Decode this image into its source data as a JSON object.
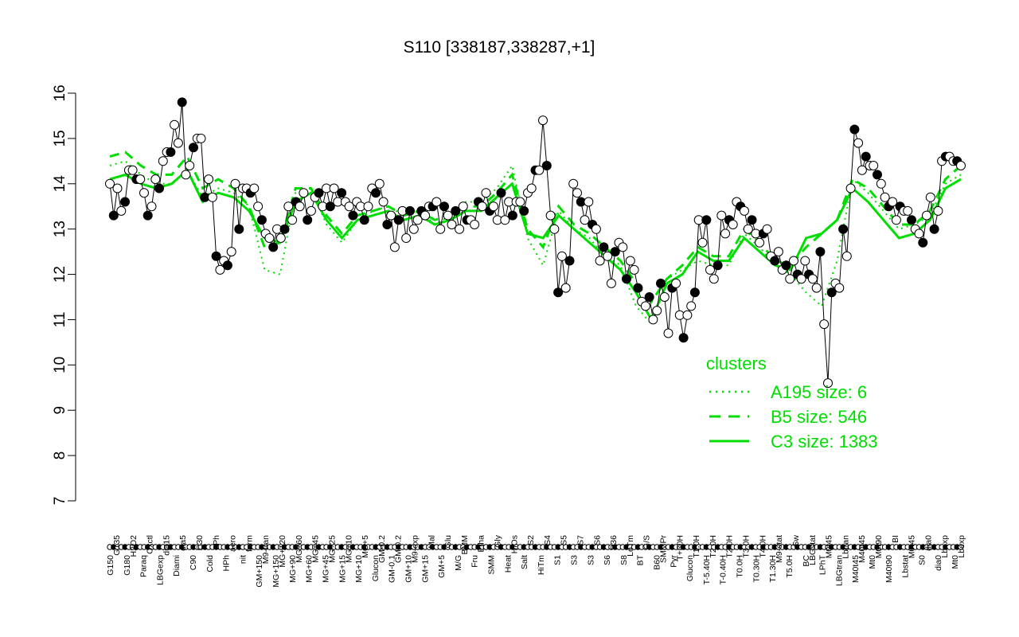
{
  "chart_data": {
    "type": "line",
    "title": "S110 [338187,338287,+1]",
    "xlabel": "",
    "ylabel": "",
    "ylim": [
      7,
      16
    ],
    "yticks": [
      7,
      8,
      9,
      10,
      11,
      12,
      13,
      14,
      15,
      16
    ],
    "x_tick_labels_top": [
      "G135",
      "H2O2",
      "Oxctl",
      "dia15",
      "dia5",
      "C30",
      "LPh",
      "aero",
      "ferm",
      "M9-tran",
      "MG+120",
      "MG+60",
      "MG+45",
      "MG+25",
      "MG+10",
      "MG+5",
      "GM-0.2",
      "GM-0.2",
      "M9-exp",
      "Mal",
      "Glu",
      "BMM",
      "Etha",
      "Gly",
      "HiOs",
      "S2",
      "S4",
      "S5",
      "S7",
      "S6",
      "B36",
      "LoTm",
      "G/S",
      "SMMPr",
      "T+30H",
      "T1.0H",
      "T2.0H",
      "T2.0H",
      "T3.0H",
      "T4.0H",
      "M9-stat",
      "Sw",
      "LBGstat",
      "M0t45",
      "Lbtran",
      "M40t45",
      "M0t90",
      "BI",
      "M0t45",
      "dia0",
      "Lbexp",
      "Lbexp"
    ],
    "x_tick_labels_bottom": [
      "G150",
      "G180",
      "Paraq",
      "LBGexp",
      "Diami",
      "C90",
      "Cold",
      "HPh",
      "nit",
      "GM+150",
      "MG+150",
      "MG+90",
      "MG+60",
      "MG+45",
      "MG+15",
      "MG+10",
      "Glucon",
      "GM-0.1",
      "GM+10",
      "GM+15",
      "GM+5",
      "M/G",
      "Fru",
      "SMM",
      "Heat",
      "Salt",
      "HiTm",
      "S1",
      "S3",
      "S3",
      "S6",
      "S8",
      "BT",
      "B60",
      "Pyr",
      "Glucon",
      "T-5.40H",
      "T-0.40H",
      "T0.0H",
      "T0.30H",
      "T1.30H",
      "T5.0H",
      "BC",
      "LPhT",
      "LBGtran",
      "M40t45",
      "Mt0",
      "M40t90",
      "Lbstat",
      "S0",
      "dia0",
      "Mt0"
    ],
    "series": [
      {
        "style": "black line with circle markers",
        "values": [
          14.0,
          13.3,
          13.9,
          13.4,
          13.6,
          14.3,
          14.3,
          14.1,
          14.1,
          13.8,
          13.3,
          13.5,
          14.1,
          13.9,
          14.5,
          14.7,
          14.7,
          15.3,
          14.9,
          15.8,
          14.2,
          14.4,
          14.8,
          15.0,
          15.0,
          13.7,
          14.1,
          13.7,
          12.4,
          12.1,
          12.3,
          12.2,
          12.5,
          14.0,
          13.0,
          13.9,
          13.9,
          13.8,
          13.9,
          13.5,
          13.2,
          12.9,
          12.8,
          12.6,
          13.0,
          12.8,
          13.0,
          13.5,
          13.2,
          13.6,
          13.5,
          13.8,
          13.2,
          13.4,
          13.7,
          13.8,
          13.5,
          13.9,
          13.5,
          13.9,
          13.6,
          13.8,
          13.6,
          13.5,
          13.3,
          13.6,
          13.5,
          13.2,
          13.5,
          13.9,
          13.8,
          14.0,
          13.6,
          13.1,
          13.3,
          12.6,
          13.2,
          13.4,
          12.8,
          13.4,
          13.0,
          13.2,
          13.4,
          13.3,
          13.5,
          13.5,
          13.6,
          13.0,
          13.5,
          13.3,
          13.1,
          13.4,
          13.0,
          13.5,
          13.2,
          13.2,
          13.1,
          13.6,
          13.5,
          13.8,
          13.4,
          13.5,
          13.2,
          13.8,
          13.2,
          13.6,
          13.3,
          13.6,
          13.6,
          13.4,
          13.8,
          13.9,
          14.3,
          14.3,
          15.4,
          14.4,
          13.3,
          13.0,
          11.6,
          12.4,
          11.7,
          12.3,
          14.0,
          13.8,
          13.6,
          13.2,
          13.6,
          13.1,
          13.0,
          12.3,
          12.6,
          12.4,
          11.8,
          12.5,
          12.7,
          12.6,
          11.9,
          12.3,
          12.1,
          11.7,
          11.4,
          11.3,
          11.5,
          11.0,
          11.2,
          11.8,
          11.5,
          10.7,
          11.7,
          11.8,
          11.1,
          10.6,
          11.1,
          11.3,
          11.6,
          13.2,
          12.7,
          13.2,
          12.1,
          11.9,
          12.2,
          13.3,
          12.9,
          13.2,
          13.1,
          13.6,
          13.5,
          13.4,
          13.0,
          13.2,
          12.9,
          12.7,
          12.9,
          13.0,
          12.4,
          12.3,
          12.5,
          12.1,
          12.2,
          11.9,
          12.3,
          12.0,
          11.9,
          12.3,
          12.0,
          11.9,
          11.7,
          12.5,
          10.9,
          9.6,
          11.6,
          11.8,
          11.7,
          13.0,
          12.4,
          13.9,
          15.2,
          14.9,
          14.3,
          14.6,
          14.4,
          14.4,
          14.2,
          14.0,
          13.7,
          13.5,
          13.6,
          13.2,
          13.5,
          13.4,
          13.4,
          13.2,
          13.0,
          12.9,
          12.7,
          13.3,
          13.7,
          13.0,
          13.4,
          14.5,
          14.6,
          14.6,
          14.5,
          14.5,
          14.4
        ]
      },
      {
        "name": "A195 size: 6",
        "style": "dotted",
        "values": [
          14.4,
          14.5,
          14.2,
          14.0,
          14.0,
          14.3,
          13.7,
          13.9,
          13.8,
          13.5,
          12.1,
          12.0,
          13.8,
          13.9,
          13.1,
          12.7,
          13.2,
          13.4,
          13.5,
          13.3,
          13.4,
          13.1,
          13.3,
          13.6,
          13.6,
          13.9,
          14.4,
          12.8,
          12.2,
          13.4,
          13.0,
          12.8,
          12.4,
          12.2,
          11.3,
          10.9,
          11.9,
          12.1,
          12.3,
          12.2,
          12.2,
          12.9,
          12.6,
          12.2,
          12.0,
          11.6,
          11.3,
          12.3,
          14.1,
          13.8,
          13.4,
          13.0,
          13.1,
          13.3,
          14.0,
          14.2
        ]
      },
      {
        "name": "B5 size: 546",
        "style": "dashed",
        "values": [
          14.6,
          14.7,
          14.4,
          14.2,
          14.2,
          14.6,
          13.9,
          14.1,
          13.9,
          13.5,
          12.6,
          12.7,
          13.9,
          13.9,
          13.3,
          12.9,
          13.3,
          13.4,
          13.5,
          13.3,
          13.4,
          13.2,
          13.3,
          13.5,
          13.5,
          13.8,
          14.2,
          13.0,
          12.6,
          13.5,
          13.1,
          12.9,
          12.6,
          12.3,
          11.8,
          11.4,
          11.9,
          12.2,
          12.6,
          12.4,
          12.4,
          13.0,
          12.7,
          12.3,
          12.2,
          12.6,
          12.9,
          13.2,
          14.1,
          13.9,
          13.5,
          13.1,
          13.1,
          13.4,
          14.1,
          14.4
        ]
      },
      {
        "name": "C3 size: 1383",
        "style": "solid",
        "values": [
          14.1,
          14.2,
          14.0,
          13.9,
          14.0,
          14.3,
          13.6,
          13.8,
          13.7,
          13.4,
          12.8,
          12.7,
          13.6,
          13.8,
          13.2,
          12.8,
          13.2,
          13.3,
          13.4,
          13.2,
          13.3,
          13.1,
          13.2,
          13.4,
          13.4,
          13.7,
          14.0,
          12.9,
          12.8,
          13.3,
          13.0,
          12.7,
          12.4,
          12.1,
          11.6,
          11.0,
          11.8,
          12.0,
          12.5,
          12.3,
          12.3,
          12.8,
          12.5,
          12.2,
          12.1,
          12.8,
          12.9,
          13.2,
          13.9,
          13.6,
          13.2,
          12.8,
          12.9,
          13.2,
          13.9,
          14.1
        ]
      }
    ],
    "legend": {
      "title": "clusters",
      "placement": "lower-right",
      "entries": [
        "A195 size: 6",
        "B5 size: 546",
        "C3 size: 1383"
      ]
    },
    "grid": false,
    "colors": {
      "series": "#000000",
      "clusters": "#00dd00",
      "point_filled": "#000000",
      "point_open": "#ffffff"
    }
  }
}
